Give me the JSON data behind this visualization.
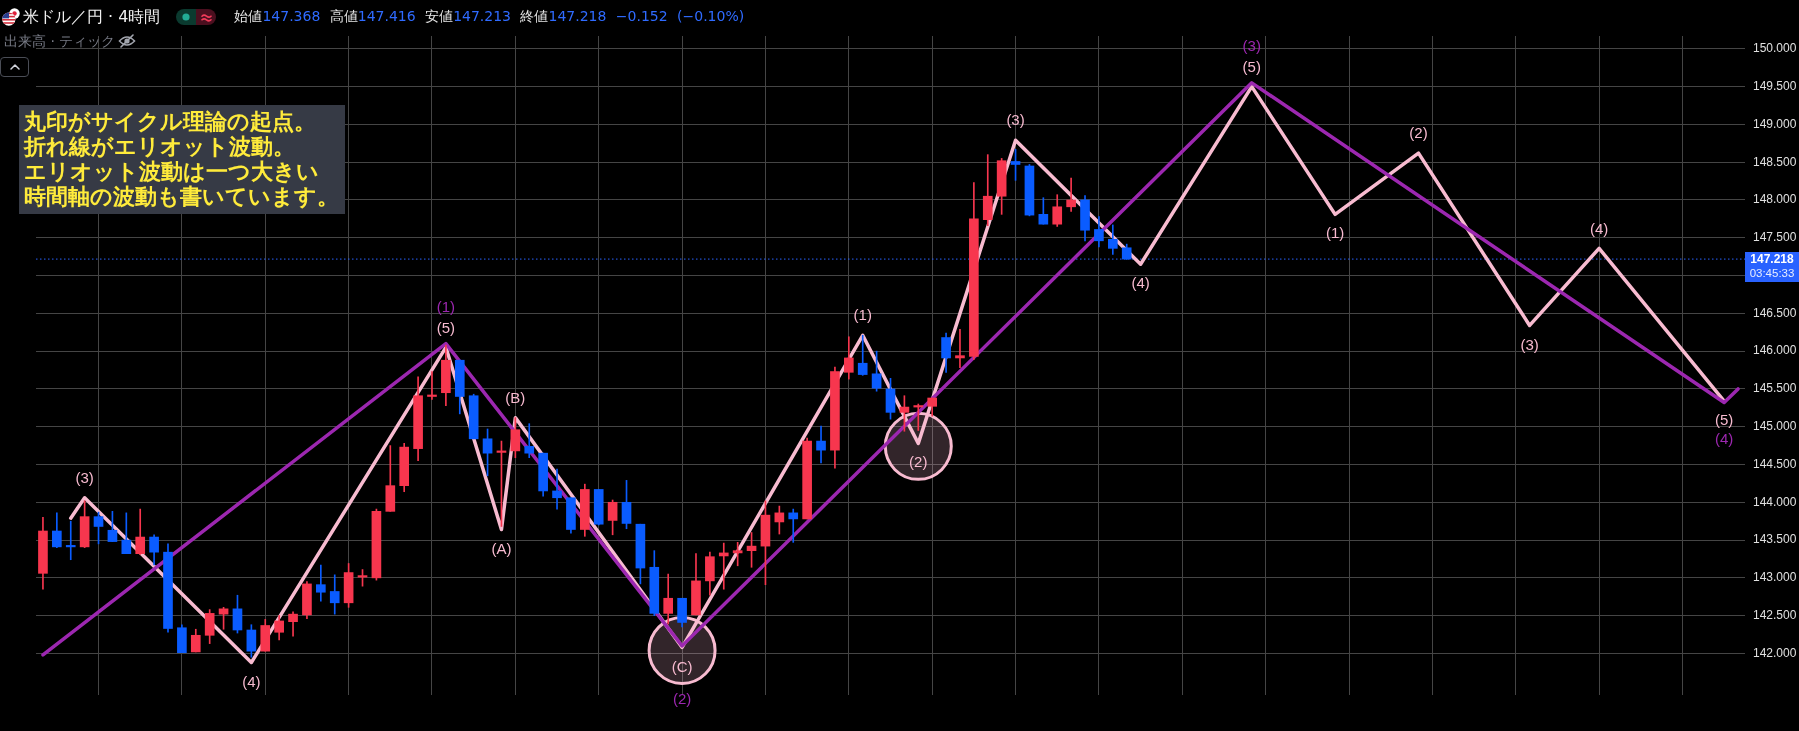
{
  "chart_data": {
    "type": "candlestick",
    "title": "米ドル／円 · 4時間",
    "subtitle": "始値147.368 高値147.416 安値147.213 終値147.218 −0.152 (−0.10%)",
    "annotations": [
      "丸印がサイクル理論の起点。折れ線がエリオット波動。エリオット波動は一つ大きい時間軸の波動も書いています。",
      "出来高 · ティック",
      "03:45:33",
      {
        "text": "(3)",
        "y": 144.06
      },
      {
        "text": "(4)",
        "y": 141.88
      },
      {
        "text": "(5)",
        "y": 146.05
      },
      {
        "text": "(A)",
        "y": 143.64
      },
      {
        "text": "(B)",
        "y": 145.12
      },
      {
        "text": "(C)",
        "y": 142.08
      },
      {
        "text": "(1)",
        "y": 146.21
      },
      {
        "text": "(2)",
        "y": 144.78
      },
      {
        "text": "(3)",
        "y": 148.79
      },
      {
        "text": "(4)",
        "y": 147.15
      },
      {
        "text": "(5)",
        "y": 149.5
      },
      {
        "text": "(1)",
        "y": 147.81
      },
      {
        "text": "(2)",
        "y": 148.62
      },
      {
        "text": "(3)",
        "y": 146.34
      },
      {
        "text": "(4)",
        "y": 147.36
      },
      {
        "text": "(5)",
        "y": 145.34
      },
      {
        "text": "(1)",
        "y": 146.1
      },
      {
        "text": "(2)",
        "y": 142.1
      },
      {
        "text": "(3)",
        "y": 149.55
      },
      {
        "text": "(4)",
        "y": 145.32
      }
    ],
    "categories": [
      null,
      null,
      null,
      null,
      null,
      null,
      null,
      null,
      null,
      null,
      null,
      null,
      null,
      null,
      null,
      null,
      null,
      null,
      null,
      null,
      null,
      null,
      null,
      null,
      null,
      null,
      null,
      null,
      null,
      null,
      null,
      null,
      null,
      null,
      null,
      null,
      null,
      null,
      null,
      null,
      null,
      null,
      null,
      null,
      null,
      null,
      null,
      null,
      null,
      null,
      null,
      null,
      null,
      null,
      null,
      null,
      null,
      null,
      null,
      null,
      null,
      null,
      null,
      null,
      null,
      null,
      null,
      null,
      null,
      null,
      null,
      null,
      null,
      null,
      null,
      null,
      null,
      null,
      null,
      null,
      null,
      null,
      null,
      null,
      null,
      null,
      null,
      null,
      null,
      null,
      null,
      null,
      null,
      null,
      null,
      null,
      null,
      null,
      null,
      null,
      null,
      null,
      null,
      null,
      null,
      null,
      null,
      null,
      null,
      null,
      null,
      null,
      null,
      null,
      null,
      null,
      null,
      null,
      null,
      null,
      null,
      null,
      null
    ],
    "ohlc": [
      [
        143.06,
        143.8,
        142.85,
        143.62
      ],
      [
        143.62,
        143.86,
        143.4,
        143.41
      ],
      [
        143.42,
        143.75,
        143.24,
        143.41
      ],
      [
        143.41,
        144.02,
        143.4,
        143.81
      ],
      [
        143.81,
        143.87,
        143.45,
        143.68
      ],
      [
        143.63,
        143.88,
        143.48,
        143.48
      ],
      [
        143.5,
        143.86,
        143.32,
        143.32
      ],
      [
        143.32,
        143.91,
        143.31,
        143.54
      ],
      [
        143.54,
        143.57,
        143.17,
        143.34
      ],
      [
        143.34,
        143.45,
        142.28,
        142.33
      ],
      [
        142.34,
        142.38,
        142.01,
        142.01
      ],
      [
        142.02,
        142.32,
        142.02,
        142.24
      ],
      [
        142.24,
        142.58,
        142.13,
        142.53
      ],
      [
        142.52,
        142.61,
        142.32,
        142.59
      ],
      [
        142.59,
        142.77,
        142.27,
        142.31
      ],
      [
        142.31,
        142.38,
        141.95,
        142.03
      ],
      [
        142.03,
        142.45,
        142.03,
        142.37
      ],
      [
        142.28,
        142.5,
        142.18,
        142.43
      ],
      [
        142.42,
        142.55,
        142.23,
        142.52
      ],
      [
        142.51,
        142.95,
        142.46,
        142.92
      ],
      [
        142.91,
        143.17,
        142.69,
        142.81
      ],
      [
        142.82,
        143.04,
        142.52,
        142.67
      ],
      [
        142.67,
        143.19,
        142.61,
        143.07
      ],
      [
        143.01,
        143.11,
        142.89,
        143.02
      ],
      [
        143.0,
        143.91,
        142.97,
        143.88
      ],
      [
        143.88,
        144.75,
        143.88,
        144.22
      ],
      [
        144.22,
        144.78,
        144.14,
        144.73
      ],
      [
        144.71,
        145.66,
        144.55,
        145.41
      ],
      [
        145.4,
        145.73,
        145.36,
        145.42
      ],
      [
        145.45,
        146.08,
        145.28,
        145.88
      ],
      [
        145.88,
        145.88,
        145.17,
        145.4
      ],
      [
        145.41,
        145.43,
        144.84,
        144.84
      ],
      [
        144.84,
        144.97,
        144.35,
        144.65
      ],
      [
        144.66,
        144.81,
        143.68,
        144.68
      ],
      [
        144.68,
        145.12,
        144.59,
        144.96
      ],
      [
        144.74,
        145.04,
        144.59,
        144.65
      ],
      [
        144.65,
        144.65,
        144.08,
        144.15
      ],
      [
        144.15,
        144.44,
        143.91,
        144.06
      ],
      [
        144.06,
        144.06,
        143.59,
        143.64
      ],
      [
        143.64,
        144.24,
        143.55,
        144.17
      ],
      [
        144.17,
        144.17,
        143.7,
        143.71
      ],
      [
        143.76,
        144.03,
        143.57,
        144.0
      ],
      [
        144.0,
        144.29,
        143.65,
        143.72
      ],
      [
        143.71,
        143.71,
        142.92,
        143.13
      ],
      [
        143.14,
        143.36,
        142.5,
        142.53
      ],
      [
        142.53,
        143.05,
        142.39,
        142.73
      ],
      [
        142.73,
        142.73,
        142.35,
        142.41
      ],
      [
        142.51,
        143.32,
        142.51,
        142.96
      ],
      [
        142.96,
        143.34,
        142.77,
        143.28
      ],
      [
        143.29,
        143.46,
        142.85,
        143.33
      ],
      [
        143.33,
        143.47,
        143.16,
        143.36
      ],
      [
        143.36,
        143.6,
        143.14,
        143.42
      ],
      [
        143.42,
        144.02,
        142.91,
        143.83
      ],
      [
        143.74,
        143.95,
        143.58,
        143.86
      ],
      [
        143.86,
        143.91,
        143.47,
        143.78
      ],
      [
        143.78,
        144.85,
        143.78,
        144.81
      ],
      [
        144.81,
        145.01,
        144.52,
        144.69
      ],
      [
        144.69,
        145.79,
        144.45,
        145.73
      ],
      [
        145.72,
        146.19,
        145.63,
        145.91
      ],
      [
        145.84,
        146.21,
        145.68,
        145.69
      ],
      [
        145.7,
        146.0,
        145.47,
        145.51
      ],
      [
        145.5,
        145.64,
        145.1,
        145.19
      ],
      [
        145.19,
        145.41,
        144.94,
        145.26
      ],
      [
        145.26,
        145.3,
        144.95,
        145.28
      ],
      [
        145.27,
        145.38,
        145.14,
        145.38
      ],
      [
        146.18,
        146.24,
        145.72,
        145.91
      ],
      [
        145.91,
        146.29,
        145.78,
        145.94
      ],
      [
        145.93,
        148.23,
        145.89,
        147.75
      ],
      [
        147.74,
        148.6,
        147.66,
        148.05
      ],
      [
        148.05,
        148.55,
        147.81,
        148.52
      ],
      [
        148.51,
        148.67,
        148.26,
        148.47
      ],
      [
        148.45,
        148.47,
        147.79,
        147.8
      ],
      [
        147.81,
        148.03,
        147.68,
        147.68
      ],
      [
        147.68,
        148.07,
        147.65,
        147.91
      ],
      [
        147.91,
        148.29,
        147.85,
        148.0
      ],
      [
        148.0,
        148.06,
        147.46,
        147.6
      ],
      [
        147.61,
        147.78,
        147.38,
        147.46
      ],
      [
        147.48,
        147.67,
        147.28,
        147.36
      ],
      [
        147.368,
        147.416,
        147.213,
        147.218
      ],
      null,
      null,
      null,
      null,
      null,
      null,
      null,
      null,
      null,
      null,
      null,
      null,
      null,
      null,
      null,
      null,
      null,
      null,
      null,
      null,
      null,
      null,
      null,
      null,
      null,
      null,
      null,
      null,
      null,
      null,
      null,
      null,
      null,
      null,
      null,
      null,
      null,
      null,
      null,
      null,
      null,
      null,
      null,
      null
    ],
    "colors": [
      "#f7364e",
      "#0a5cff",
      "#0a5cff",
      "#f7364e",
      "#0a5cff",
      "#0a5cff",
      "#0a5cff",
      "#f7364e",
      "#0a5cff",
      "#0a5cff",
      "#0a5cff",
      "#f7364e",
      "#f7364e",
      "#f7364e",
      "#0a5cff",
      "#0a5cff",
      "#f7364e",
      "#f7364e",
      "#f7364e",
      "#f7364e",
      "#0a5cff",
      "#0a5cff",
      "#f7364e",
      "#f7364e",
      "#f7364e",
      "#f7364e",
      "#f7364e",
      "#f7364e",
      "#f7364e",
      "#f7364e",
      "#0a5cff",
      "#0a5cff",
      "#0a5cff",
      "#f7364e",
      "#f7364e",
      "#0a5cff",
      "#0a5cff",
      "#0a5cff",
      "#0a5cff",
      "#f7364e",
      "#0a5cff",
      "#f7364e",
      "#0a5cff",
      "#0a5cff",
      "#0a5cff",
      "#f7364e",
      "#0a5cff",
      "#f7364e",
      "#f7364e",
      "#f7364e",
      "#f7364e",
      "#f7364e",
      "#f7364e",
      "#f7364e",
      "#0a5cff",
      "#f7364e",
      "#0a5cff",
      "#f7364e",
      "#f7364e",
      "#0a5cff",
      "#0a5cff",
      "#0a5cff",
      "#f7364e",
      "#f7364e",
      "#f7364e",
      "#0a5cff",
      "#f7364e",
      "#f7364e",
      "#f7364e",
      "#f7364e",
      "#0a5cff",
      "#0a5cff",
      "#0a5cff",
      "#f7364e",
      "#f7364e",
      "#0a5cff",
      "#0a5cff",
      "#0a5cff",
      "#0a5cff",
      null,
      null,
      null,
      null,
      null,
      null,
      null,
      null,
      null,
      null,
      null,
      null,
      null,
      null,
      null,
      null,
      null,
      null,
      null,
      null,
      null,
      null,
      null,
      null,
      null,
      null,
      null,
      null,
      null,
      null,
      null,
      null,
      null,
      null,
      null,
      null,
      null,
      null,
      null,
      null,
      null,
      null,
      null,
      null
    ],
    "series": [
      {
        "type": "scatter",
        "marker": "circle",
        "color": "#f8bbd0",
        "values": [
          null,
          null,
          null,
          null,
          null,
          null,
          null,
          null,
          null,
          null,
          null,
          null,
          null,
          null,
          null,
          null,
          null,
          null,
          null,
          null,
          null,
          null,
          null,
          null,
          null,
          null,
          null,
          null,
          null,
          null,
          null,
          null,
          null,
          null,
          null,
          null,
          null,
          null,
          null,
          null,
          null,
          null,
          null,
          null,
          null,
          null,
          142.04,
          null,
          null,
          null,
          null,
          null,
          null,
          null,
          null,
          null,
          null,
          null,
          null,
          null,
          null,
          null,
          null,
          144.74,
          null,
          null,
          null,
          null,
          null,
          null,
          null,
          null,
          null,
          null,
          null,
          null,
          null,
          null,
          null,
          null,
          null,
          null,
          null,
          null,
          null,
          null,
          null,
          null,
          null,
          null,
          null,
          null,
          null,
          null,
          null,
          null,
          null,
          null,
          null,
          null,
          null,
          null,
          null,
          null,
          null,
          null,
          null,
          null,
          null,
          null,
          null,
          null,
          null,
          null,
          null,
          null,
          null,
          null,
          null,
          null,
          null,
          null,
          null
        ]
      },
      {
        "type": "line",
        "color": "#f8bbd0",
        "values": [
          null,
          null,
          143.79,
          144.06,
          null,
          null,
          null,
          null,
          null,
          null,
          null,
          null,
          null,
          null,
          null,
          141.88,
          null,
          null,
          null,
          null,
          null,
          null,
          null,
          null,
          null,
          null,
          null,
          null,
          null,
          146.05,
          null,
          null,
          null,
          143.64,
          145.12,
          null,
          null,
          null,
          null,
          null,
          null,
          null,
          null,
          null,
          null,
          null,
          142.08,
          null,
          null,
          null,
          null,
          null,
          null,
          null,
          null,
          null,
          null,
          null,
          null,
          146.21,
          null,
          null,
          null,
          144.78,
          null,
          null,
          null,
          null,
          null,
          null,
          148.79,
          null,
          null,
          null,
          null,
          null,
          null,
          null,
          null,
          147.15,
          null,
          null,
          null,
          null,
          null,
          null,
          null,
          149.5,
          null,
          null,
          null,
          null,
          null,
          147.81,
          null,
          null,
          null,
          null,
          null,
          148.62,
          null,
          null,
          null,
          null,
          null,
          null,
          null,
          146.34,
          null,
          null,
          null,
          null,
          147.36,
          null,
          null,
          null,
          null,
          null,
          null,
          null,
          null,
          145.34,
          null
        ]
      },
      {
        "type": "line",
        "color": "#9c27b0",
        "values": [
          141.98,
          null,
          null,
          null,
          null,
          null,
          null,
          null,
          null,
          null,
          null,
          null,
          null,
          null,
          null,
          null,
          null,
          null,
          null,
          null,
          null,
          null,
          null,
          null,
          null,
          null,
          null,
          null,
          null,
          146.1,
          null,
          null,
          null,
          null,
          null,
          null,
          null,
          null,
          null,
          null,
          null,
          null,
          null,
          null,
          null,
          null,
          142.1,
          null,
          null,
          null,
          null,
          null,
          null,
          null,
          null,
          null,
          null,
          null,
          null,
          null,
          null,
          null,
          null,
          null,
          null,
          null,
          null,
          null,
          null,
          null,
          null,
          null,
          null,
          null,
          null,
          null,
          null,
          null,
          null,
          null,
          null,
          null,
          null,
          null,
          null,
          null,
          null,
          149.55,
          null,
          null,
          null,
          null,
          null,
          null,
          null,
          null,
          null,
          null,
          null,
          null,
          null,
          null,
          null,
          null,
          null,
          null,
          null,
          null,
          null,
          null,
          null,
          null,
          null,
          null,
          null,
          null,
          null,
          null,
          null,
          null,
          null,
          145.32,
          145.5
        ]
      }
    ],
    "ylim": [
      141.45,
      150.17
    ],
    "yticks": [
      {
        "value": 142,
        "label": "142.000"
      },
      {
        "value": 142.5,
        "label": "142.500"
      },
      {
        "value": 143,
        "label": "143.000"
      },
      {
        "value": 143.5,
        "label": "143.500"
      },
      {
        "value": 144,
        "label": "144.000"
      },
      {
        "value": 144.5,
        "label": "144.500"
      },
      {
        "value": 145,
        "label": "145.000"
      },
      {
        "value": 145.5,
        "label": "145.500"
      },
      {
        "value": 146,
        "label": "146.000"
      },
      {
        "value": 146.5,
        "label": "146.500"
      },
      {
        "value": 147,
        "label": null
      },
      {
        "value": 147.5,
        "label": "147.500"
      },
      {
        "value": 148,
        "label": "148.000"
      },
      {
        "value": 148.5,
        "label": "148.500"
      },
      {
        "value": 149,
        "label": "149.000"
      },
      {
        "value": 149.5,
        "label": "149.500"
      },
      {
        "value": 150,
        "label": "150.000"
      }
    ],
    "ref_lines": [
      {
        "axis": "y",
        "value": 147.218,
        "label": "147.218",
        "color": "#2962ff",
        "line_style": "dotted"
      }
    ],
    "grid": true,
    "tick_labels": "y"
  }
}
